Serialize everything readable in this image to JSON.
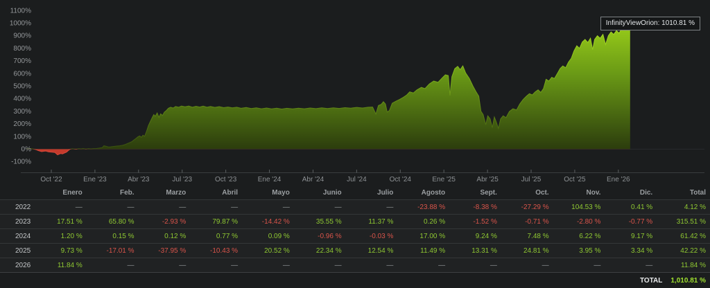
{
  "tooltip": {
    "text": "InfinityViewOrion: 1010.81 %"
  },
  "chart_data": {
    "type": "area",
    "series_name": "InfinityViewOrion",
    "unit": "%",
    "last_value": 1010.81,
    "ylim": [
      -100,
      1100
    ],
    "grid": false,
    "y_ticks": [
      {
        "label": "1100%",
        "v": 1100
      },
      {
        "label": "1000%",
        "v": 1000
      },
      {
        "label": "900%",
        "v": 900
      },
      {
        "label": "800%",
        "v": 800
      },
      {
        "label": "700%",
        "v": 700
      },
      {
        "label": "600%",
        "v": 600
      },
      {
        "label": "500%",
        "v": 500
      },
      {
        "label": "400%",
        "v": 400
      },
      {
        "label": "300%",
        "v": 300
      },
      {
        "label": "200%",
        "v": 200
      },
      {
        "label": "100%",
        "v": 100
      },
      {
        "label": "0%",
        "v": 0
      },
      {
        "label": "-100%",
        "v": -100
      }
    ],
    "x_ticks": [
      {
        "label": "Oct '22",
        "t": 2
      },
      {
        "label": "Ene '23",
        "t": 5
      },
      {
        "label": "Abr '23",
        "t": 8
      },
      {
        "label": "Jul '23",
        "t": 11
      },
      {
        "label": "Oct '23",
        "t": 14
      },
      {
        "label": "Ene '24",
        "t": 17
      },
      {
        "label": "Abr '24",
        "t": 20
      },
      {
        "label": "Jul '24",
        "t": 23
      },
      {
        "label": "Oct '24",
        "t": 26
      },
      {
        "label": "Ene '25",
        "t": 29
      },
      {
        "label": "Abr '25",
        "t": 32
      },
      {
        "label": "Jul '25",
        "t": 35
      },
      {
        "label": "Oct '25",
        "t": 38
      },
      {
        "label": "Ene '26",
        "t": 41
      }
    ],
    "points": [
      [
        0.28,
        0
      ],
      [
        0.45,
        2
      ],
      [
        0.62,
        3
      ],
      [
        0.78,
        -1
      ],
      [
        0.95,
        -6
      ],
      [
        1.09,
        -13
      ],
      [
        1.33,
        -22
      ],
      [
        1.48,
        -19
      ],
      [
        1.62,
        -17
      ],
      [
        1.8,
        -23
      ],
      [
        1.95,
        -25
      ],
      [
        2.1,
        -27
      ],
      [
        2.25,
        -29
      ],
      [
        2.43,
        -48
      ],
      [
        2.55,
        -41
      ],
      [
        2.66,
        -36
      ],
      [
        2.76,
        -40
      ],
      [
        2.9,
        -33
      ],
      [
        3.05,
        -26
      ],
      [
        3.18,
        -12
      ],
      [
        3.28,
        -4
      ],
      [
        3.45,
        1
      ],
      [
        3.6,
        -1
      ],
      [
        3.72,
        -3
      ],
      [
        3.88,
        2
      ],
      [
        4.05,
        0
      ],
      [
        4.2,
        3
      ],
      [
        4.38,
        -1
      ],
      [
        4.55,
        2
      ],
      [
        4.72,
        0
      ],
      [
        4.9,
        2
      ],
      [
        5.1,
        3
      ],
      [
        5.3,
        6
      ],
      [
        5.5,
        10
      ],
      [
        5.62,
        24
      ],
      [
        5.75,
        21
      ],
      [
        5.9,
        16
      ],
      [
        6.05,
        15
      ],
      [
        6.2,
        18
      ],
      [
        6.35,
        20
      ],
      [
        6.5,
        22
      ],
      [
        6.7,
        24
      ],
      [
        6.9,
        28
      ],
      [
        7.1,
        35
      ],
      [
        7.25,
        43
      ],
      [
        7.4,
        50
      ],
      [
        7.55,
        58
      ],
      [
        7.7,
        72
      ],
      [
        7.85,
        85
      ],
      [
        7.95,
        95
      ],
      [
        8.08,
        103
      ],
      [
        8.2,
        92
      ],
      [
        8.3,
        108
      ],
      [
        8.42,
        100
      ],
      [
        8.55,
        140
      ],
      [
        8.68,
        185
      ],
      [
        8.8,
        215
      ],
      [
        8.95,
        250
      ],
      [
        9.05,
        272
      ],
      [
        9.15,
        258
      ],
      [
        9.28,
        285
      ],
      [
        9.4,
        250
      ],
      [
        9.52,
        278
      ],
      [
        9.65,
        265
      ],
      [
        9.78,
        292
      ],
      [
        9.92,
        305
      ],
      [
        10.05,
        322
      ],
      [
        10.2,
        330
      ],
      [
        10.38,
        324
      ],
      [
        10.55,
        336
      ],
      [
        10.75,
        330
      ],
      [
        10.95,
        340
      ],
      [
        11.2,
        334
      ],
      [
        11.45,
        340
      ],
      [
        11.7,
        331
      ],
      [
        11.95,
        338
      ],
      [
        12.2,
        332
      ],
      [
        12.45,
        339
      ],
      [
        12.7,
        330
      ],
      [
        12.95,
        336
      ],
      [
        13.25,
        329
      ],
      [
        13.55,
        335
      ],
      [
        13.85,
        327
      ],
      [
        14.15,
        332
      ],
      [
        14.45,
        325
      ],
      [
        14.75,
        330
      ],
      [
        15.05,
        322
      ],
      [
        15.4,
        328
      ],
      [
        15.75,
        320
      ],
      [
        16.1,
        326
      ],
      [
        16.45,
        318
      ],
      [
        16.8,
        324
      ],
      [
        17.15,
        317
      ],
      [
        17.5,
        323
      ],
      [
        17.85,
        316
      ],
      [
        18.2,
        322
      ],
      [
        18.6,
        317
      ],
      [
        19,
        323
      ],
      [
        19.4,
        318
      ],
      [
        19.8,
        324
      ],
      [
        20.2,
        319
      ],
      [
        20.6,
        325
      ],
      [
        21,
        320
      ],
      [
        21.4,
        326
      ],
      [
        21.8,
        321
      ],
      [
        22.2,
        327
      ],
      [
        22.6,
        323
      ],
      [
        23,
        329
      ],
      [
        23.4,
        324
      ],
      [
        23.8,
        330
      ],
      [
        24.1,
        332
      ],
      [
        24.32,
        276
      ],
      [
        24.5,
        344
      ],
      [
        24.68,
        352
      ],
      [
        24.84,
        374
      ],
      [
        24.98,
        356
      ],
      [
        25.1,
        292
      ],
      [
        25.25,
        304
      ],
      [
        25.45,
        362
      ],
      [
        25.7,
        378
      ],
      [
        25.95,
        392
      ],
      [
        26.2,
        408
      ],
      [
        26.45,
        428
      ],
      [
        26.65,
        452
      ],
      [
        26.9,
        444
      ],
      [
        27.15,
        468
      ],
      [
        27.45,
        488
      ],
      [
        27.7,
        478
      ],
      [
        28,
        515
      ],
      [
        28.3,
        538
      ],
      [
        28.6,
        528
      ],
      [
        28.9,
        565
      ],
      [
        29.1,
        588
      ],
      [
        29.3,
        582
      ],
      [
        29.42,
        424
      ],
      [
        29.55,
        572
      ],
      [
        29.75,
        636
      ],
      [
        29.95,
        655
      ],
      [
        30.12,
        628
      ],
      [
        30.3,
        658
      ],
      [
        30.5,
        602
      ],
      [
        30.75,
        558
      ],
      [
        31,
        498
      ],
      [
        31.22,
        452
      ],
      [
        31.4,
        418
      ],
      [
        31.55,
        298
      ],
      [
        31.7,
        272
      ],
      [
        31.88,
        192
      ],
      [
        32.02,
        262
      ],
      [
        32.18,
        238
      ],
      [
        32.33,
        168
      ],
      [
        32.47,
        252
      ],
      [
        32.6,
        214
      ],
      [
        32.75,
        162
      ],
      [
        32.9,
        238
      ],
      [
        33.08,
        262
      ],
      [
        33.28,
        248
      ],
      [
        33.5,
        296
      ],
      [
        33.75,
        318
      ],
      [
        34,
        308
      ],
      [
        34.22,
        356
      ],
      [
        34.45,
        392
      ],
      [
        34.68,
        418
      ],
      [
        34.88,
        438
      ],
      [
        35.08,
        428
      ],
      [
        35.28,
        452
      ],
      [
        35.48,
        468
      ],
      [
        35.66,
        448
      ],
      [
        35.85,
        478
      ],
      [
        36.03,
        552
      ],
      [
        36.22,
        538
      ],
      [
        36.42,
        568
      ],
      [
        36.6,
        558
      ],
      [
        36.8,
        598
      ],
      [
        37,
        638
      ],
      [
        37.18,
        658
      ],
      [
        37.38,
        644
      ],
      [
        37.57,
        688
      ],
      [
        37.76,
        718
      ],
      [
        37.95,
        778
      ],
      [
        38.14,
        818
      ],
      [
        38.33,
        798
      ],
      [
        38.52,
        848
      ],
      [
        38.71,
        868
      ],
      [
        38.9,
        844
      ],
      [
        39.08,
        878
      ],
      [
        39.23,
        788
      ],
      [
        39.37,
        868
      ],
      [
        39.56,
        898
      ],
      [
        39.75,
        878
      ],
      [
        39.94,
        908
      ],
      [
        40.12,
        828
      ],
      [
        40.31,
        898
      ],
      [
        40.5,
        928
      ],
      [
        40.68,
        908
      ],
      [
        40.87,
        938
      ],
      [
        41.05,
        918
      ],
      [
        41.25,
        958
      ],
      [
        41.44,
        942
      ],
      [
        41.62,
        984
      ],
      [
        41.81,
        1010.81
      ]
    ],
    "colors": {
      "fill_gradient": [
        [
          "0",
          "#a5da1b"
        ],
        [
          "0.45",
          "#6b9b16"
        ],
        [
          "1",
          "#2c3d0d"
        ]
      ],
      "stroke_gradient": [
        [
          "0",
          "#b8e824"
        ],
        [
          "0.45",
          "#80b41c"
        ],
        [
          "1",
          "#3a500f"
        ]
      ],
      "negative_fill": "#c43a2c",
      "negative_stroke": "#d8493a",
      "axis_line": "#3a3d3f",
      "tick": "#5b5f61",
      "x_label": "#8d9194",
      "y_label": "#95989b",
      "baseline": "#2a2d2e"
    }
  },
  "table": {
    "columns": [
      "",
      "Enero",
      "Feb.",
      "Marzo",
      "Abril",
      "Mayo",
      "Junio",
      "Julio",
      "Agosto",
      "Sept.",
      "Oct.",
      "Nov.",
      "Dic.",
      "Total"
    ],
    "rows": [
      {
        "year": "2022",
        "values": [
          "—",
          "—",
          "—",
          "—",
          "—",
          "—",
          "—",
          "-23.88 %",
          "-8.38 %",
          "-27.29 %",
          "104.53 %",
          "0.41 %",
          "4.12 %"
        ]
      },
      {
        "year": "2023",
        "values": [
          "17.51 %",
          "65.80 %",
          "-2.93 %",
          "79.87 %",
          "-14.42 %",
          "35.55 %",
          "11.37 %",
          "0.26 %",
          "-1.52 %",
          "-0.71 %",
          "-2.80 %",
          "-0.77 %",
          "315.51 %"
        ]
      },
      {
        "year": "2024",
        "values": [
          "1.20 %",
          "0.15 %",
          "0.12 %",
          "0.77 %",
          "0.09 %",
          "-0.96 %",
          "-0.03 %",
          "17.00 %",
          "9.24 %",
          "7.48 %",
          "6.22 %",
          "9.17 %",
          "61.42 %"
        ]
      },
      {
        "year": "2025",
        "values": [
          "9.73 %",
          "-17.01 %",
          "-37.95 %",
          "-10.43 %",
          "20.52 %",
          "22.34 %",
          "12.54 %",
          "11.49 %",
          "13.31 %",
          "24.81 %",
          "3.95 %",
          "3.34 %",
          "42.22 %"
        ]
      },
      {
        "year": "2026",
        "values": [
          "11.84 %",
          "—",
          "—",
          "—",
          "—",
          "—",
          "—",
          "—",
          "—",
          "—",
          "—",
          "—",
          "11.84 %"
        ]
      }
    ],
    "total_row": {
      "label": "TOTAL",
      "value": "1,010.81 %"
    },
    "colors": {
      "positive": "#8fc832",
      "negative": "#d9544a",
      "dash": "#8f9496",
      "year": "#c3c6c8",
      "header": "#9b9fa2",
      "total_label": "#e9ebec",
      "total_value": "#9fe12f"
    }
  }
}
